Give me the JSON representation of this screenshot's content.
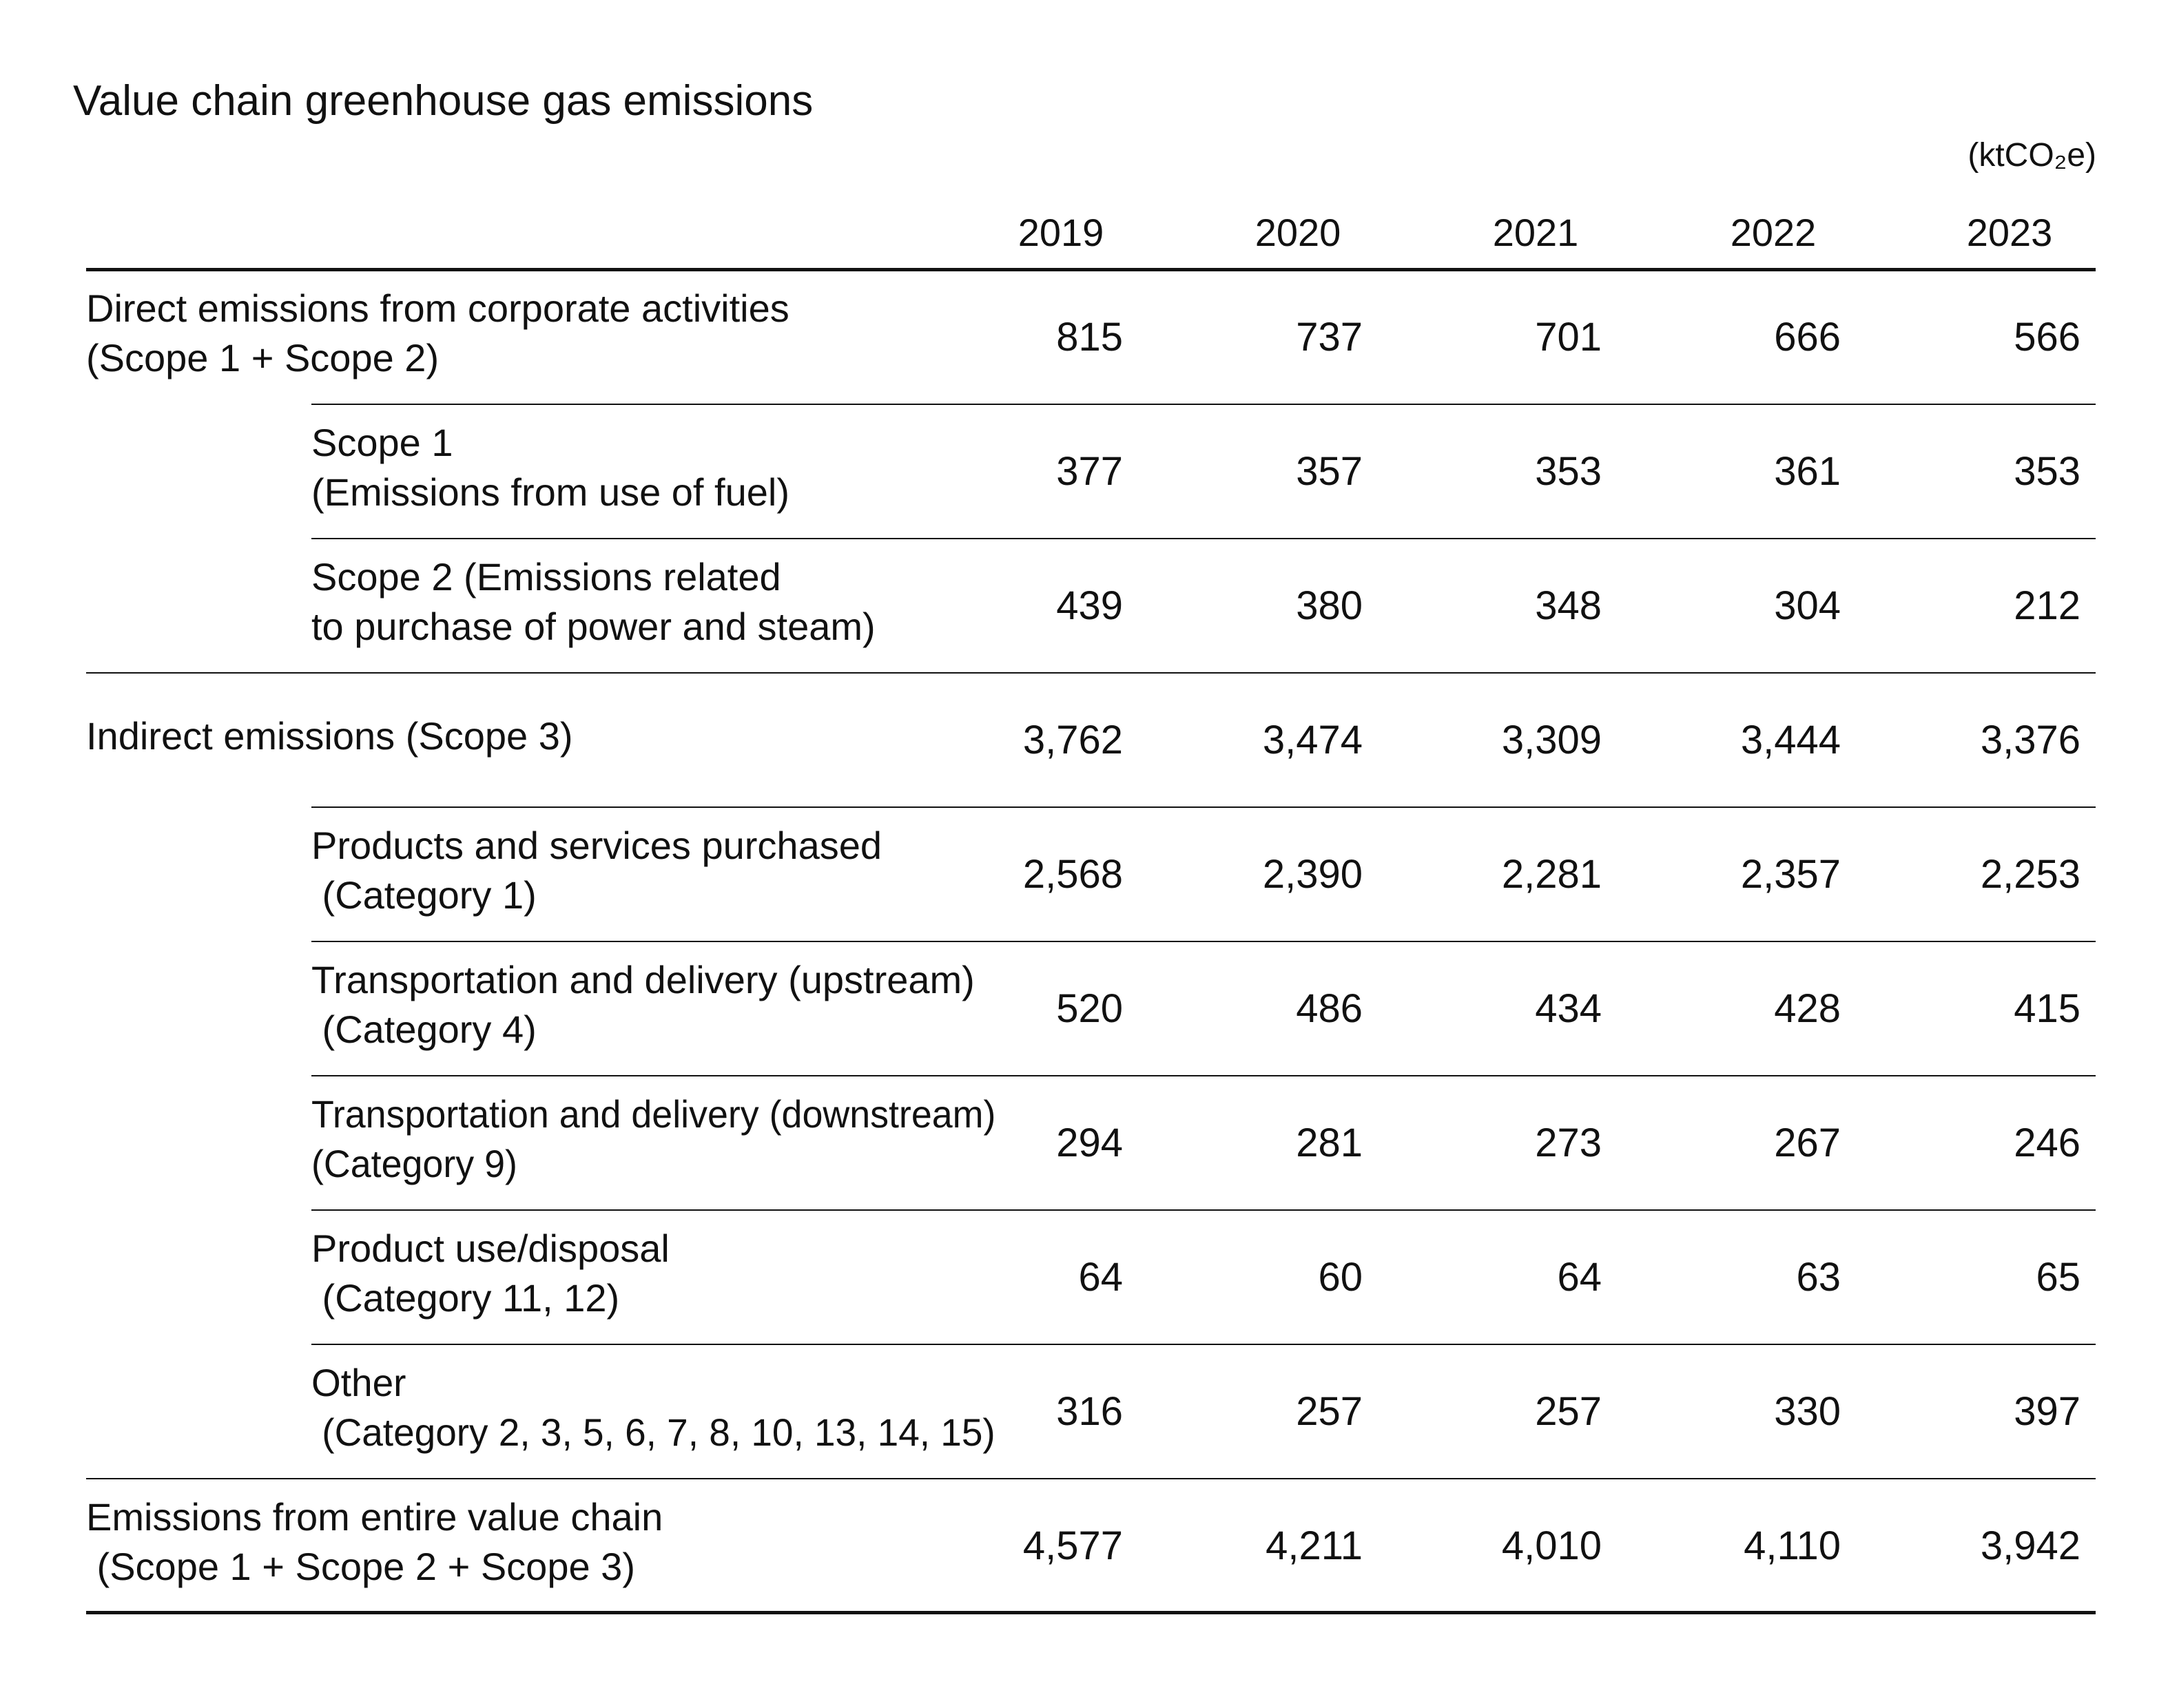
{
  "title": "Value chain greenhouse gas emissions",
  "unit": "(ktCO₂e)",
  "table": {
    "columns": [
      "2019",
      "2020",
      "2021",
      "2022",
      "2023"
    ],
    "groups": [
      {
        "label": [
          "Direct emissions from corporate activities",
          "(Scope 1 + Scope 2)"
        ],
        "values": [
          "815",
          "737",
          "701",
          "666",
          "566"
        ],
        "items": [
          {
            "label": [
              "Scope 1",
              "(Emissions from use of fuel)"
            ],
            "values": [
              "377",
              "357",
              "353",
              "361",
              "353"
            ]
          },
          {
            "label": [
              "Scope 2 (Emissions related",
              "to purchase of power and steam)"
            ],
            "values": [
              "439",
              "380",
              "348",
              "304",
              "212"
            ]
          }
        ]
      },
      {
        "label": [
          "Indirect emissions (Scope 3)"
        ],
        "values": [
          "3,762",
          "3,474",
          "3,309",
          "3,444",
          "3,376"
        ],
        "items": [
          {
            "label": [
              "Products and services purchased",
              " (Category 1)"
            ],
            "values": [
              "2,568",
              "2,390",
              "2,281",
              "2,357",
              "2,253"
            ]
          },
          {
            "label": [
              "Transportation and delivery (upstream)",
              " (Category 4)"
            ],
            "values": [
              "520",
              "486",
              "434",
              "428",
              "415"
            ]
          },
          {
            "label": [
              "Transportation and delivery (downstream)",
              "(Category 9)"
            ],
            "values": [
              "294",
              "281",
              "273",
              "267",
              "246"
            ]
          },
          {
            "label": [
              "Product use/disposal",
              " (Category 11, 12)"
            ],
            "values": [
              "64",
              "60",
              "64",
              "63",
              "65"
            ]
          },
          {
            "label": [
              "Other",
              " (Category 2, 3, 5, 6, 7, 8, 10, 13, 14, 15)"
            ],
            "values": [
              "316",
              "257",
              "257",
              "330",
              "397"
            ]
          }
        ]
      },
      {
        "label": [
          "Emissions from entire value chain",
          " (Scope 1 + Scope 2 + Scope 3)"
        ],
        "values": [
          "4,577",
          "4,211",
          "4,010",
          "4,110",
          "3,942"
        ],
        "items": []
      }
    ]
  }
}
